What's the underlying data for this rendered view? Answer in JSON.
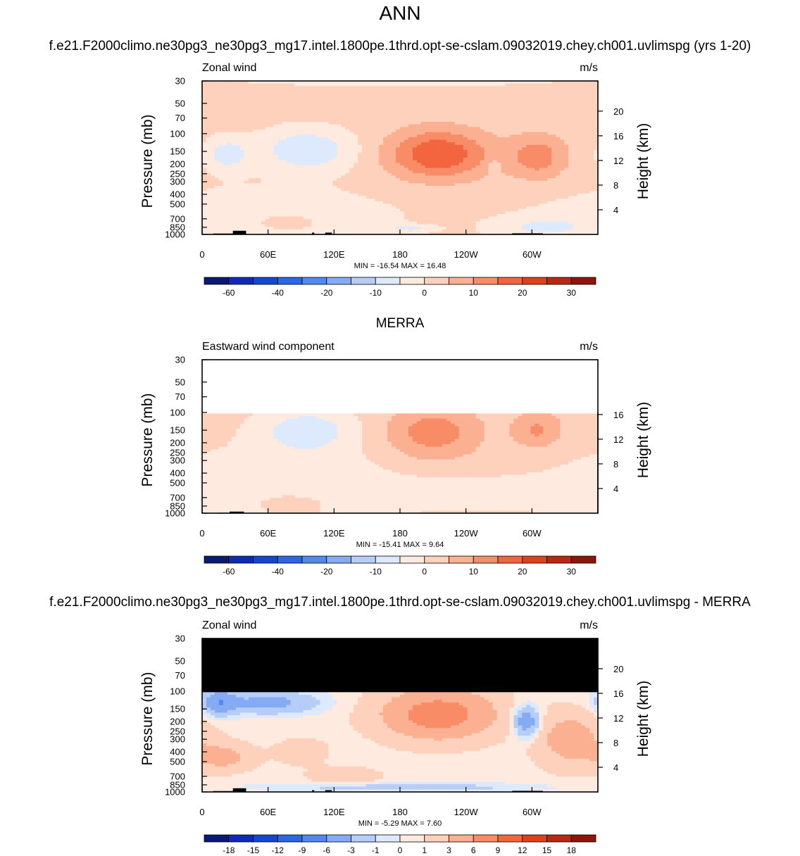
{
  "figure": {
    "title": "ANN",
    "test_case": "f.e21.F2000climo.ne30pg3_ne30pg3_mg17.intel.1800pe.1thrd.opt-se-cslam.09032019.chey.ch001.uvlimspg (yrs 1-20)",
    "ref_case": "MERRA",
    "diff_case": "f.e21.F2000climo.ne30pg3_ne30pg3_mg17.intel.1800pe.1thrd.opt-se-cslam.09032019.chey.ch001.uvlimspg - MERRA"
  },
  "colors": {
    "model_palette": [
      "#0a1a73",
      "#0d2ab8",
      "#1446d6",
      "#2b66e8",
      "#5288f0",
      "#86abf5",
      "#b6cdf8",
      "#dde9fc",
      "#feeadf",
      "#fdd1bb",
      "#fbb091",
      "#f78c66",
      "#f2653f",
      "#e0401d",
      "#bf2612",
      "#8f150b"
    ],
    "diff_palette": [
      "#0a1a73",
      "#0d2ab8",
      "#1446d6",
      "#2b66e8",
      "#5288f0",
      "#86abf5",
      "#b6cdf8",
      "#dde9fc",
      "#feeadf",
      "#fdd1bb",
      "#fbb091",
      "#f78c66",
      "#f2653f",
      "#e0401d",
      "#bf2612",
      "#8f150b"
    ],
    "land": "#000000",
    "missing": "#000000"
  },
  "chart_data": [
    {
      "type": "heatmap",
      "panel": "model",
      "left_label": "Zonal wind",
      "units": "m/s",
      "ylabel": "Pressure (mb)",
      "right_label": "Height (km)",
      "pressure_ticks": [
        "30",
        "50",
        "70",
        "100",
        "150",
        "200",
        "250",
        "300",
        "400",
        "500",
        "700",
        "850",
        "1000"
      ],
      "pressure_range": [
        30,
        1000
      ],
      "height_ticks": [
        "20",
        "16",
        "12",
        "8",
        "4"
      ],
      "lon_ticks": [
        "0",
        "60E",
        "120E",
        "180",
        "120W",
        "60W"
      ],
      "lon_range": [
        0,
        360
      ],
      "stats_text": "MIN = -16.54  MAX =  16.48",
      "colorbar_labels": [
        "-60",
        "-40",
        "-20",
        "-10",
        "0",
        "10",
        "20",
        "30"
      ],
      "levels": [
        -70,
        -60,
        -50,
        -40,
        -30,
        -20,
        -15,
        -10,
        -5,
        0,
        5,
        10,
        15,
        20,
        25,
        30
      ],
      "background_value": 2,
      "features": [
        {
          "lon": 180,
          "p": 30,
          "dlon": 300,
          "dlogp": 0.25,
          "amp": -2.5,
          "p_max": 50
        },
        {
          "lon": 95,
          "p": 145,
          "dlon": 45,
          "dlogp": 0.5,
          "amp": -11
        },
        {
          "lon": 60,
          "p": 700,
          "dlon": 120,
          "dlogp": 0.7,
          "amp": -6
        },
        {
          "lon": 22,
          "p": 160,
          "dlon": 20,
          "dlogp": 0.4,
          "amp": -9
        },
        {
          "lon": 215,
          "p": 160,
          "dlon": 45,
          "dlogp": 0.55,
          "amp": 18
        },
        {
          "lon": 305,
          "p": 170,
          "dlon": 26,
          "dlogp": 0.5,
          "amp": 11
        },
        {
          "lon": 265,
          "p": 210,
          "dlon": 6,
          "dlogp": 0.12,
          "amp": -6
        },
        {
          "lon": 305,
          "p": 850,
          "dlon": 45,
          "dlogp": 0.25,
          "amp": -6
        },
        {
          "lon": 75,
          "p": 750,
          "dlon": 40,
          "dlogp": 0.25,
          "amp": 5
        },
        {
          "lon": 190,
          "p": 880,
          "dlon": 22,
          "dlogp": 0.08,
          "amp": -7
        }
      ],
      "land": [
        [
          10,
          35,
          980
        ],
        [
          28,
          40,
          920
        ],
        [
          100,
          102,
          960
        ],
        [
          112,
          118,
          960
        ],
        [
          282,
          310,
          975
        ]
      ],
      "missing_above": null
    },
    {
      "type": "heatmap",
      "panel": "reference",
      "title": "MERRA",
      "left_label": "Eastward wind component",
      "units": "m/s",
      "ylabel": "Pressure (mb)",
      "right_label": "Height (km)",
      "pressure_ticks": [
        "30",
        "50",
        "70",
        "100",
        "150",
        "200",
        "250",
        "300",
        "400",
        "500",
        "700",
        "850",
        "1000"
      ],
      "pressure_range": [
        30,
        1000
      ],
      "height_ticks": [
        "16",
        "12",
        "8",
        "4"
      ],
      "lon_ticks": [
        "0",
        "60E",
        "120E",
        "180",
        "120W",
        "60W"
      ],
      "lon_range": [
        0,
        360
      ],
      "stats_text": "MIN = -15.41  MAX =   9.64",
      "colorbar_labels": [
        "-60",
        "-40",
        "-20",
        "-10",
        "0",
        "10",
        "20",
        "30"
      ],
      "levels": [
        -70,
        -60,
        -50,
        -40,
        -30,
        -20,
        -15,
        -10,
        -5,
        0,
        5,
        10,
        15,
        20,
        25,
        30
      ],
      "background_value": 2,
      "features": [
        {
          "lon": 95,
          "p": 150,
          "dlon": 45,
          "dlogp": 0.5,
          "amp": -10
        },
        {
          "lon": 70,
          "p": 500,
          "dlon": 110,
          "dlogp": 0.8,
          "amp": -6
        },
        {
          "lon": 250,
          "p": 650,
          "dlon": 100,
          "dlogp": 0.35,
          "amp": -6
        },
        {
          "lon": 210,
          "p": 160,
          "dlon": 42,
          "dlogp": 0.6,
          "amp": 11
        },
        {
          "lon": 305,
          "p": 150,
          "dlon": 22,
          "dlogp": 0.4,
          "amp": 9
        },
        {
          "lon": 80,
          "p": 750,
          "dlon": 40,
          "dlogp": 0.25,
          "amp": 4
        }
      ],
      "land": [
        [
          15,
          35,
          990
        ],
        [
          25,
          38,
          965
        ]
      ],
      "missing_above": 100
    },
    {
      "type": "heatmap",
      "panel": "difference",
      "left_label": "Zonal wind",
      "units": "m/s",
      "ylabel": "Pressure (mb)",
      "right_label": "Height (km)",
      "pressure_ticks": [
        "30",
        "50",
        "70",
        "100",
        "150",
        "200",
        "250",
        "300",
        "400",
        "500",
        "700",
        "850",
        "1000"
      ],
      "pressure_range": [
        30,
        1000
      ],
      "height_ticks": [
        "20",
        "16",
        "12",
        "8",
        "4"
      ],
      "lon_ticks": [
        "0",
        "60E",
        "120E",
        "180",
        "120W",
        "60W"
      ],
      "lon_range": [
        0,
        360
      ],
      "stats_text": "MIN =  -5.29  MAX =   7.60",
      "colorbar_labels": [
        "-18",
        "-15",
        "-12",
        "-9",
        "-6",
        "-3",
        "-1",
        "0",
        "1",
        "3",
        "6",
        "9",
        "12",
        "15",
        "18"
      ],
      "levels": [
        -21,
        -18,
        -15,
        -12,
        -9,
        -6,
        -3,
        -1,
        0,
        1,
        3,
        6,
        9,
        12,
        15,
        18
      ],
      "background_value": 0.5,
      "features": [
        {
          "lon": 215,
          "p": 170,
          "dlon": 50,
          "dlogp": 0.55,
          "amp": 7.5
        },
        {
          "lon": 295,
          "p": 200,
          "dlon": 12,
          "dlogp": 0.35,
          "amp": -6
        },
        {
          "lon": 60,
          "p": 130,
          "dlon": 45,
          "dlogp": 0.25,
          "amp": -4.5
        },
        {
          "lon": 15,
          "p": 130,
          "dlon": 15,
          "dlogp": 0.3,
          "amp": -5
        },
        {
          "lon": 335,
          "p": 300,
          "dlon": 30,
          "dlogp": 0.6,
          "amp": 4
        },
        {
          "lon": 20,
          "p": 450,
          "dlon": 25,
          "dlogp": 0.3,
          "amp": 3.5
        },
        {
          "lon": 180,
          "p": 900,
          "dlon": 120,
          "dlogp": 0.1,
          "amp": -2.5
        },
        {
          "lon": 130,
          "p": 700,
          "dlon": 30,
          "dlogp": 0.2,
          "amp": 2
        },
        {
          "lon": 90,
          "p": 400,
          "dlon": 25,
          "dlogp": 0.3,
          "amp": 1.5
        }
      ],
      "land": [
        [
          10,
          35,
          980
        ],
        [
          28,
          40,
          920
        ],
        [
          100,
          102,
          960
        ],
        [
          112,
          118,
          960
        ],
        [
          282,
          310,
          975
        ]
      ],
      "missing_above": 100
    }
  ]
}
